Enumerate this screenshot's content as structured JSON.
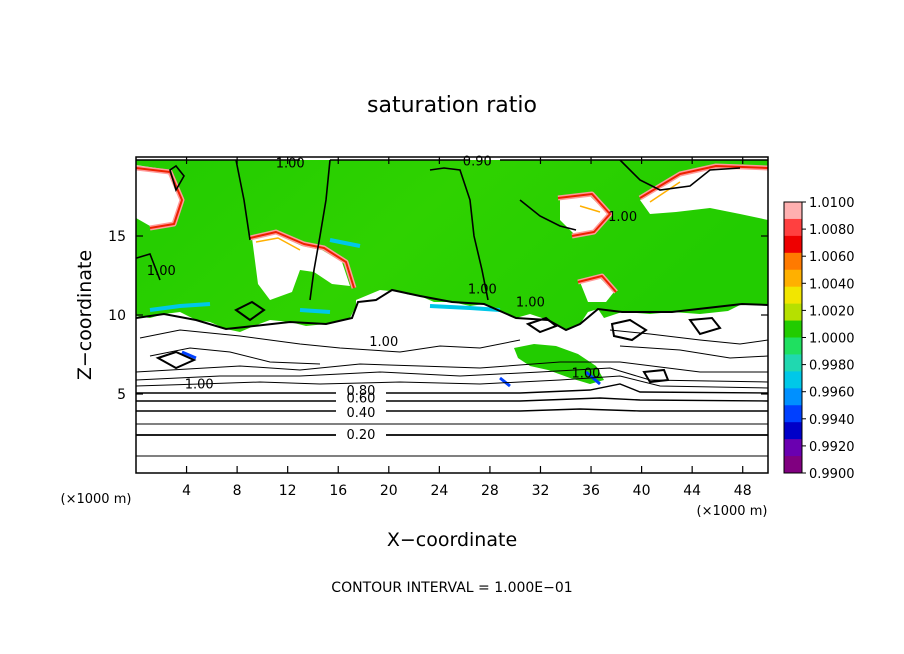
{
  "chart_data": {
    "type": "heatmap",
    "title": "saturation ratio",
    "xlabel": "X−coordinate",
    "ylabel": "Z−coordinate",
    "x_unit": "(×1000 m)",
    "y_unit": "(×1000 m)",
    "xlim": [
      0,
      50
    ],
    "ylim": [
      0,
      20
    ],
    "x_ticks": [
      4,
      8,
      12,
      16,
      20,
      24,
      28,
      32,
      36,
      40,
      44,
      48
    ],
    "y_ticks": [
      5,
      10,
      15
    ],
    "note": "CONTOUR INTERVAL = 1.000E−01",
    "colorbar": {
      "min": 0.99,
      "max": 1.01,
      "labels": [
        "1.0100",
        "1.0080",
        "1.0060",
        "1.0040",
        "1.0020",
        "1.0000",
        "0.9980",
        "0.9960",
        "0.9940",
        "0.9920",
        "0.9900"
      ],
      "colors": [
        "#ffb0b0",
        "#ff4040",
        "#ee0000",
        "#ff7a00",
        "#ffb000",
        "#f2e600",
        "#b6e000",
        "#22cc00",
        "#1fe060",
        "#20d8b0",
        "#00c8e8",
        "#0090ff",
        "#0040ff",
        "#0000c8",
        "#6a00b0",
        "#800080"
      ]
    },
    "contour_labels": [
      {
        "text": "1.00",
        "x": 12.2,
        "z": 19.6
      },
      {
        "text": "0.90",
        "x": 27.0,
        "z": 19.7
      },
      {
        "text": "1.00",
        "x": 38.5,
        "z": 16.2
      },
      {
        "text": "1.00",
        "x": 2.0,
        "z": 12.8
      },
      {
        "text": "1.00",
        "x": 27.4,
        "z": 11.6
      },
      {
        "text": "1.00",
        "x": 31.2,
        "z": 10.8
      },
      {
        "text": "1.00",
        "x": 19.6,
        "z": 8.3
      },
      {
        "text": "1.00",
        "x": 35.6,
        "z": 6.3
      },
      {
        "text": "1.00",
        "x": 5.0,
        "z": 5.6
      },
      {
        "text": "0.80",
        "x": 17.8,
        "z": 5.2
      },
      {
        "text": "0.60",
        "x": 17.8,
        "z": 4.7
      },
      {
        "text": "0.40",
        "x": 17.8,
        "z": 3.8
      },
      {
        "text": "0.20",
        "x": 17.8,
        "z": 2.4
      }
    ],
    "contour_levels": [
      0.2,
      0.4,
      0.6,
      0.8,
      0.9,
      1.0
    ]
  }
}
